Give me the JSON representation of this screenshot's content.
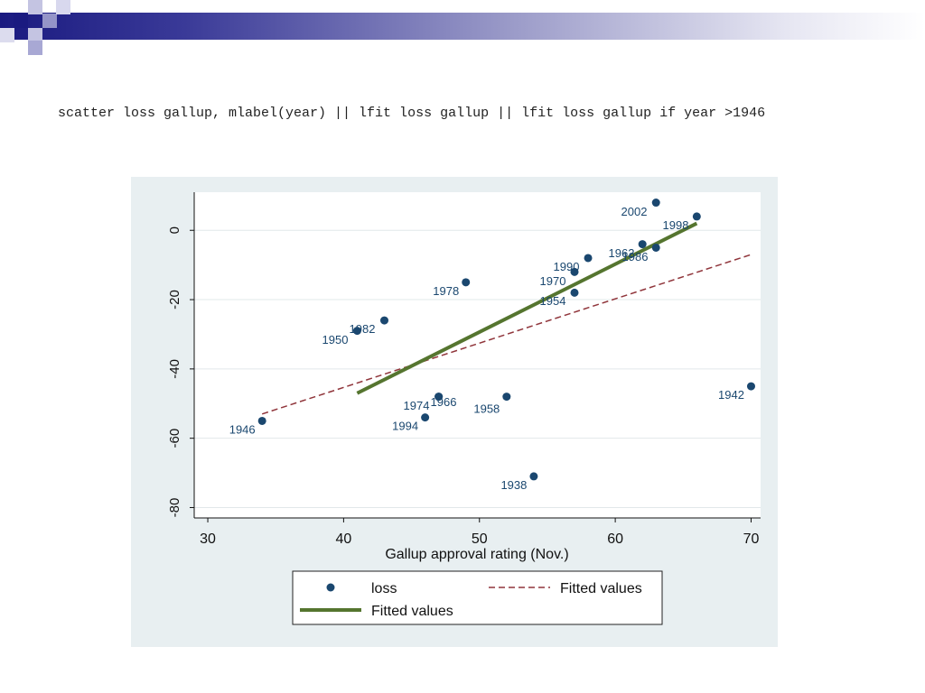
{
  "slide": {
    "command": "scatter loss gallup, mlabel(year) || lfit loss gallup || lfit loss gallup if year >1946",
    "colors": {
      "header_dark": "#1a1a80",
      "panel_bg": "#e8eff1",
      "plot_bg": "#ffffff",
      "marker": "#1a476f",
      "fit_all": "#90353b",
      "fit_post1946": "#55752f"
    }
  },
  "chart_data": {
    "type": "scatter",
    "xlabel": "Gallup approval rating (Nov.)",
    "ylabel": "",
    "xlim": [
      29,
      70.7
    ],
    "ylim": [
      -83,
      11
    ],
    "xticks": [
      30,
      40,
      50,
      60,
      70
    ],
    "yticks": [
      0,
      -20,
      -40,
      -60,
      -80
    ],
    "grid": true,
    "series": [
      {
        "name": "loss",
        "kind": "scatter",
        "points": [
          {
            "label": "1938",
            "x": 54,
            "y": -71
          },
          {
            "label": "1942",
            "x": 70,
            "y": -45
          },
          {
            "label": "1946",
            "x": 34,
            "y": -55
          },
          {
            "label": "1950",
            "x": 41,
            "y": -29
          },
          {
            "label": "1954",
            "x": 57,
            "y": -18
          },
          {
            "label": "1958",
            "x": 52,
            "y": -48
          },
          {
            "label": "1962",
            "x": 62,
            "y": -4
          },
          {
            "label": "1966",
            "x": 47,
            "y": -48
          },
          {
            "label": "1970",
            "x": 57,
            "y": -12
          },
          {
            "label": "1974",
            "x": 47,
            "y": -48
          },
          {
            "label": "1978",
            "x": 49,
            "y": -15
          },
          {
            "label": "1982",
            "x": 43,
            "y": -26
          },
          {
            "label": "1986",
            "x": 63,
            "y": -5
          },
          {
            "label": "1990",
            "x": 58,
            "y": -8
          },
          {
            "label": "1994",
            "x": 46,
            "y": -54
          },
          {
            "label": "1998",
            "x": 66,
            "y": 4
          },
          {
            "label": "2002",
            "x": 63,
            "y": 8
          }
        ]
      },
      {
        "name": "Fitted values",
        "kind": "line",
        "style": "dashed",
        "points": [
          {
            "x": 34,
            "y": -53
          },
          {
            "x": 70,
            "y": -7
          }
        ]
      },
      {
        "name": "Fitted values",
        "kind": "line",
        "style": "solid",
        "points": [
          {
            "x": 41,
            "y": -47
          },
          {
            "x": 66,
            "y": 2
          }
        ]
      }
    ],
    "legend": {
      "placement": "bottom",
      "entries": [
        {
          "label": "loss",
          "symbol": "dot"
        },
        {
          "label": "Fitted values",
          "symbol": "dashed"
        },
        {
          "label": "Fitted values",
          "symbol": "solid"
        }
      ]
    }
  }
}
